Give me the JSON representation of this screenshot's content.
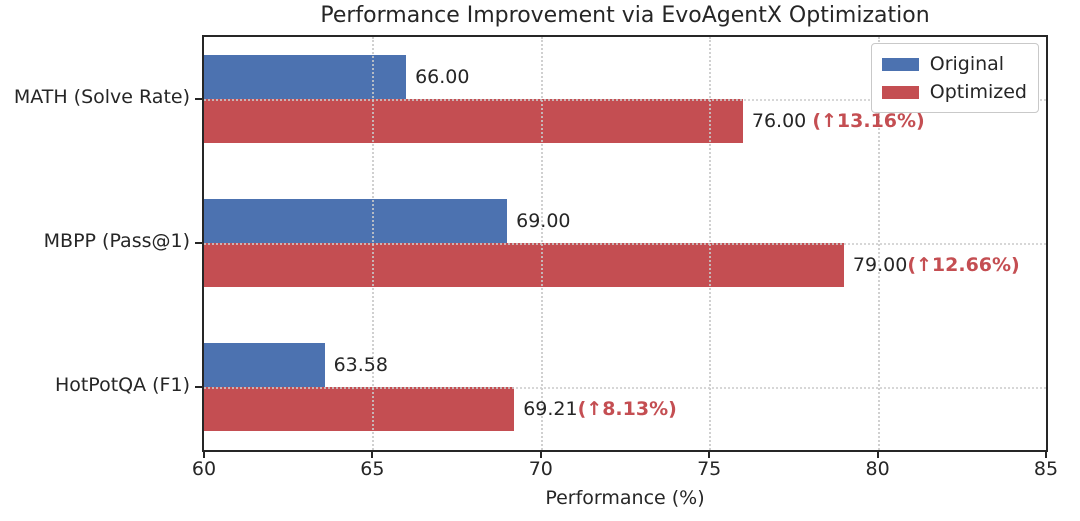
{
  "title": "Performance Improvement via EvoAgentX Optimization",
  "xlabel": "Performance (%)",
  "legend": [
    {
      "label": "Original",
      "color": "#4C72B0"
    },
    {
      "label": "Optimized",
      "color": "#C44E52"
    }
  ],
  "colors": {
    "original_bar": "#4C72B0",
    "optimized_bar": "#C44E52",
    "delta_text": "#C44E52",
    "axis_text": "#262626"
  },
  "chart_data": {
    "type": "bar",
    "orientation": "horizontal",
    "title": "Performance Improvement via EvoAgentX Optimization",
    "xlabel": "Performance (%)",
    "ylabel": "",
    "xlim": [
      60,
      85
    ],
    "x_ticks": [
      "60",
      "65",
      "70",
      "75",
      "80",
      "85"
    ],
    "grid": true,
    "legend_position": "upper right",
    "categories": [
      "MATH (Solve Rate)",
      "MBPP (Pass@1)",
      "HotPotQA (F1)"
    ],
    "series": [
      {
        "name": "Original",
        "color": "#4C72B0",
        "values": [
          66.0,
          69.0,
          63.58
        ],
        "labels": [
          "66.00",
          "69.00",
          "63.58"
        ]
      },
      {
        "name": "Optimized",
        "color": "#C44E52",
        "values": [
          76.0,
          79.0,
          69.21
        ],
        "labels": [
          "76.00 ",
          "79.00",
          "69.21"
        ],
        "deltas": [
          "(↑13.16%)",
          "(↑12.66%)",
          "(↑8.13%)"
        ]
      }
    ]
  }
}
